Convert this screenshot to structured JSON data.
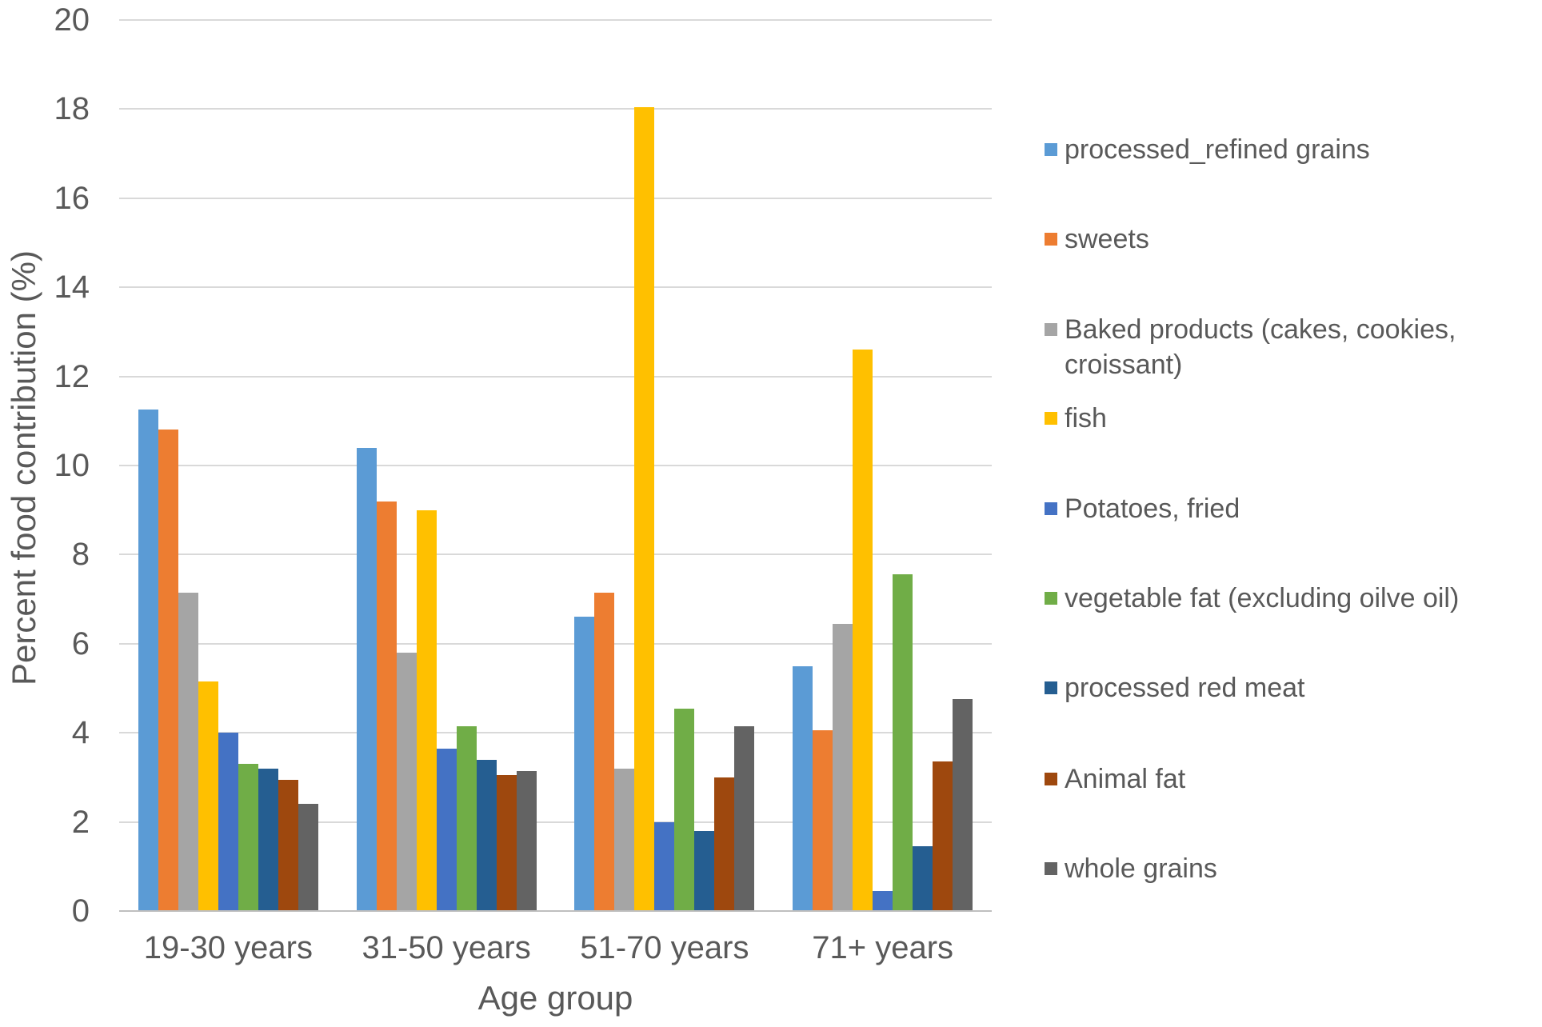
{
  "chart_data": {
    "type": "bar",
    "title": "",
    "xlabel": "Age group",
    "ylabel": "Percent food contribution (%)",
    "ylim": [
      0,
      20
    ],
    "ytick_step": 2,
    "grid": true,
    "legend_position": "right",
    "text_color": "#595959",
    "grid_color": "#D9D9D9",
    "categories": [
      "19-30 years",
      "31-50 years",
      "51-70 years",
      "71+ years"
    ],
    "y_tick_labels": [
      "20",
      "18",
      "16",
      "14",
      "12",
      "10",
      "8",
      "6",
      "4",
      "2",
      "0"
    ],
    "series": [
      {
        "name": "processed_refined grains",
        "color": "#5B9BD5",
        "values": [
          11.25,
          10.4,
          6.6,
          5.5
        ]
      },
      {
        "name": "sweets",
        "color": "#ED7D31",
        "values": [
          10.8,
          9.2,
          7.15,
          4.05
        ]
      },
      {
        "name": "Baked products (cakes, cookies, croissant)",
        "color": "#A5A5A5",
        "values": [
          7.15,
          5.8,
          3.2,
          6.45
        ]
      },
      {
        "name": "fish",
        "color": "#FFC000",
        "values": [
          5.15,
          9.0,
          18.05,
          12.6
        ]
      },
      {
        "name": "Potatoes, fried",
        "color": "#4472C4",
        "values": [
          4.0,
          3.65,
          2.0,
          0.45
        ]
      },
      {
        "name": "vegetable fat (excluding oilve oil)",
        "color": "#70AD47",
        "values": [
          3.3,
          4.15,
          4.55,
          7.55
        ]
      },
      {
        "name": "processed red meat",
        "color": "#255E91",
        "values": [
          3.2,
          3.4,
          1.8,
          1.45
        ]
      },
      {
        "name": "Animal fat",
        "color": "#9E480E",
        "values": [
          2.95,
          3.05,
          3.0,
          3.35
        ]
      },
      {
        "name": "whole grains",
        "color": "#636363",
        "values": [
          2.4,
          3.15,
          4.15,
          4.75
        ]
      }
    ]
  }
}
